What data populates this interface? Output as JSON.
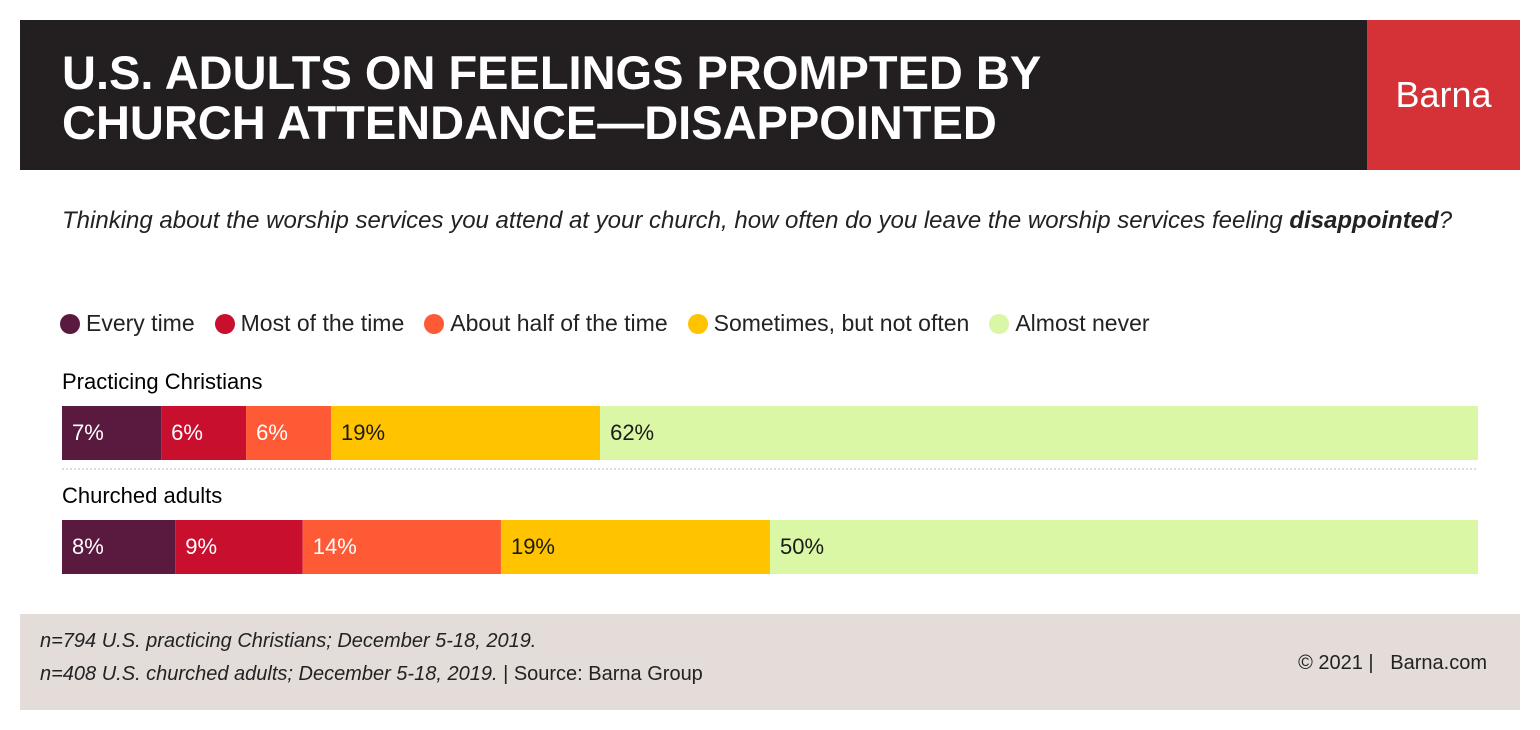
{
  "chart_data": {
    "type": "stacked-bar",
    "title": "U.S. ADULTS ON FEELINGS PROMPTED BY CHURCH ATTENDANCE—DISAPPOINTED",
    "brand": "Barna",
    "subtitle": {
      "before": "Thinking about the worship services you attend at your church, how often do you leave the worship services feeling ",
      "emphasis": "disappointed",
      "after": "?"
    },
    "categories": [
      "Practicing Christians",
      "Churched adults"
    ],
    "xlim": [
      0,
      100
    ],
    "series": [
      {
        "name": "Every time",
        "color": "#5a1a3f",
        "label_color": "#ffffff",
        "values": [
          7,
          8
        ],
        "value_labels": [
          "7%",
          "8%"
        ]
      },
      {
        "name": "Most of the time",
        "color": "#c8102e",
        "label_color": "#ffffff",
        "values": [
          6,
          9
        ],
        "value_labels": [
          "6%",
          "9%"
        ]
      },
      {
        "name": "About half of the time",
        "color": "#ff5a36",
        "label_color": "#ffffff",
        "values": [
          6,
          14
        ],
        "value_labels": [
          "6%",
          "14%"
        ]
      },
      {
        "name": "Sometimes, but not often",
        "color": "#ffc300",
        "label_color": "#1a1a1a",
        "values": [
          19,
          19
        ],
        "value_labels": [
          "19%",
          "19%"
        ]
      },
      {
        "name": "Almost never",
        "color": "#daf7a6",
        "label_color": "#1a1a1a",
        "values": [
          62,
          50
        ],
        "value_labels": [
          "62%",
          "50%"
        ]
      }
    ],
    "notes": [
      "n=794 U.S. practicing Christians; December 5-18, 2019.",
      "n=408 U.S. churched adults; December 5-18, 2019."
    ],
    "source": "| Source: Barna Group",
    "copyright": "© 2021 |",
    "website": "Barna.com"
  }
}
